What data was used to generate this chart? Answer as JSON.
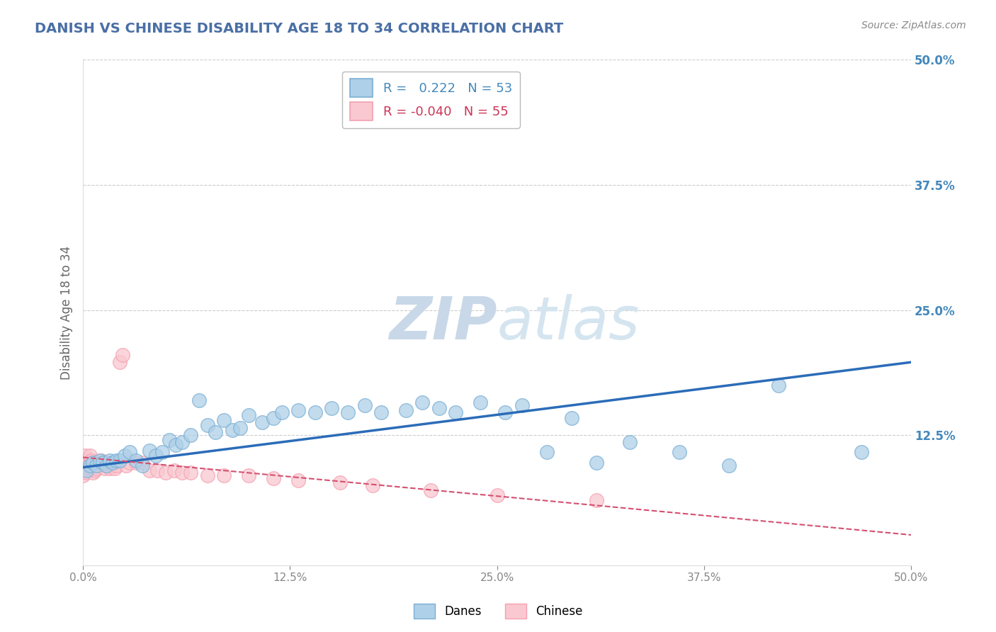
{
  "title": "DANISH VS CHINESE DISABILITY AGE 18 TO 34 CORRELATION CHART",
  "source": "Source: ZipAtlas.com",
  "xlabel": "",
  "ylabel": "Disability Age 18 to 34",
  "xlim": [
    0.0,
    0.5
  ],
  "ylim": [
    -0.005,
    0.5
  ],
  "xtick_labels": [
    "0.0%",
    "12.5%",
    "25.0%",
    "37.5%",
    "50.0%"
  ],
  "xtick_vals": [
    0.0,
    0.125,
    0.25,
    0.375,
    0.5
  ],
  "ytick_labels": [
    "12.5%",
    "25.0%",
    "37.5%",
    "50.0%"
  ],
  "ytick_vals": [
    0.125,
    0.25,
    0.375,
    0.5
  ],
  "danes_R": "0.222",
  "danes_N": "53",
  "chinese_R": "-0.040",
  "chinese_N": "55",
  "danes_color": "#7BAFD4",
  "danish_fill": "#AED0E8",
  "chinese_color": "#F4A0B0",
  "chinese_fill": "#F9C8D0",
  "trend_danes_color": "#2B6CB8",
  "trend_chinese_color": "#D45070",
  "background_color": "#FFFFFF",
  "watermark_color": "#D8E4EE",
  "legend_danes_color": "#AED0E8",
  "legend_chinese_color": "#F9C8D0",
  "danes_x": [
    0.002,
    0.004,
    0.006,
    0.008,
    0.01,
    0.012,
    0.014,
    0.016,
    0.018,
    0.02,
    0.022,
    0.025,
    0.028,
    0.032,
    0.036,
    0.04,
    0.044,
    0.048,
    0.052,
    0.056,
    0.06,
    0.065,
    0.07,
    0.075,
    0.08,
    0.085,
    0.09,
    0.095,
    0.1,
    0.108,
    0.115,
    0.12,
    0.13,
    0.14,
    0.15,
    0.16,
    0.17,
    0.18,
    0.195,
    0.205,
    0.215,
    0.225,
    0.24,
    0.255,
    0.265,
    0.28,
    0.295,
    0.31,
    0.33,
    0.36,
    0.39,
    0.42,
    0.47
  ],
  "danes_y": [
    0.09,
    0.095,
    0.098,
    0.095,
    0.1,
    0.098,
    0.095,
    0.1,
    0.098,
    0.1,
    0.1,
    0.105,
    0.108,
    0.1,
    0.095,
    0.11,
    0.105,
    0.108,
    0.12,
    0.115,
    0.118,
    0.125,
    0.16,
    0.135,
    0.128,
    0.14,
    0.13,
    0.132,
    0.145,
    0.138,
    0.142,
    0.148,
    0.15,
    0.148,
    0.152,
    0.148,
    0.155,
    0.148,
    0.15,
    0.158,
    0.152,
    0.148,
    0.158,
    0.148,
    0.155,
    0.108,
    0.142,
    0.098,
    0.118,
    0.108,
    0.095,
    0.175,
    0.108
  ],
  "chinese_x": [
    0.0,
    0.0,
    0.0,
    0.001,
    0.001,
    0.001,
    0.002,
    0.002,
    0.002,
    0.003,
    0.003,
    0.004,
    0.004,
    0.005,
    0.005,
    0.006,
    0.006,
    0.007,
    0.007,
    0.008,
    0.008,
    0.009,
    0.01,
    0.011,
    0.012,
    0.013,
    0.014,
    0.015,
    0.016,
    0.017,
    0.018,
    0.019,
    0.02,
    0.022,
    0.024,
    0.026,
    0.028,
    0.032,
    0.036,
    0.04,
    0.045,
    0.05,
    0.055,
    0.06,
    0.065,
    0.075,
    0.085,
    0.1,
    0.115,
    0.13,
    0.155,
    0.175,
    0.21,
    0.25,
    0.31
  ],
  "chinese_y": [
    0.095,
    0.09,
    0.085,
    0.105,
    0.098,
    0.092,
    0.1,
    0.095,
    0.088,
    0.098,
    0.092,
    0.105,
    0.098,
    0.1,
    0.092,
    0.098,
    0.088,
    0.095,
    0.09,
    0.098,
    0.092,
    0.098,
    0.095,
    0.1,
    0.098,
    0.092,
    0.098,
    0.095,
    0.092,
    0.098,
    0.095,
    0.092,
    0.095,
    0.198,
    0.205,
    0.095,
    0.098,
    0.098,
    0.098,
    0.09,
    0.09,
    0.088,
    0.09,
    0.088,
    0.088,
    0.085,
    0.085,
    0.085,
    0.082,
    0.08,
    0.078,
    0.075,
    0.07,
    0.065,
    0.06
  ],
  "grid_color": "#CCCCCC",
  "title_color": "#4A6FA5",
  "title_fontsize": 14,
  "axis_label_color": "#666666",
  "tick_label_color": "#888888",
  "figsize": [
    14.06,
    8.92
  ],
  "dpi": 100
}
